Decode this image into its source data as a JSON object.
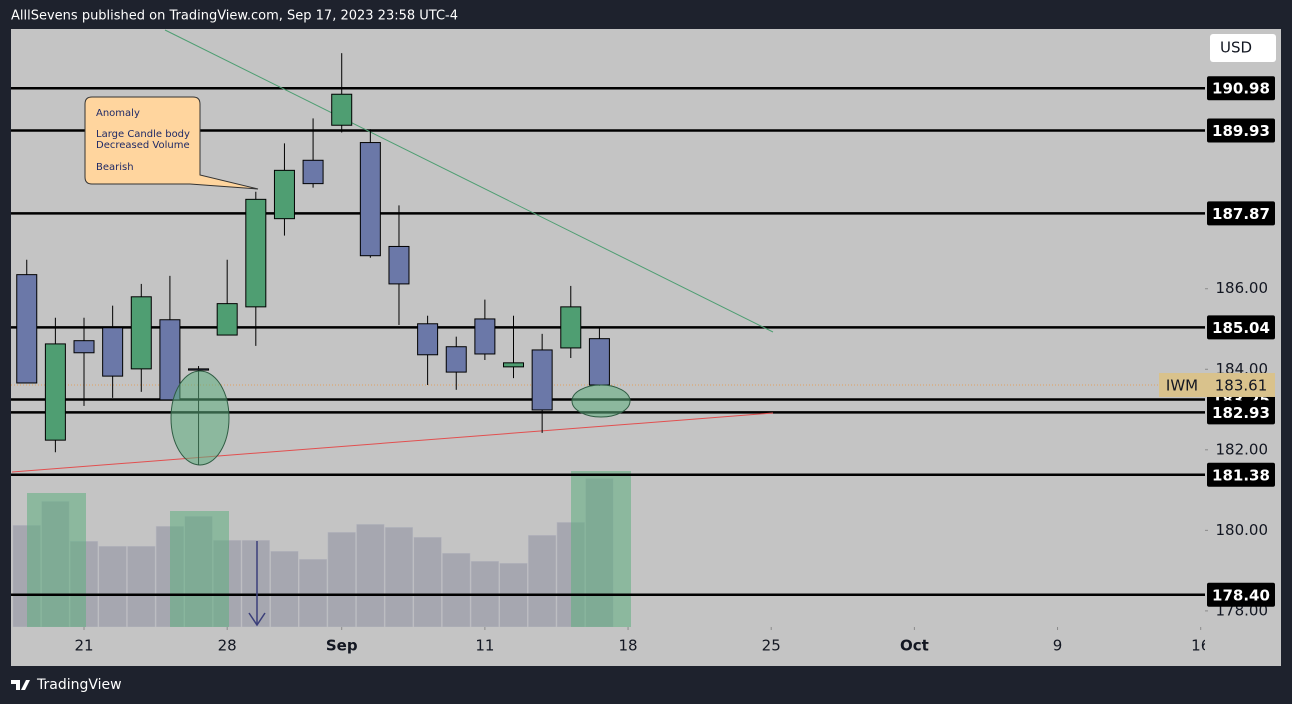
{
  "chart_data": {
    "type": "candlestick",
    "publisher_line": "AlllSevens published on TradingView.com, Sep 17, 2023 23:58 UTC-4",
    "brand": "TradingView",
    "currency": "USD",
    "symbol": "IWM",
    "last_price": 183.61,
    "callout": [
      "Anomaly",
      "Large Candle body",
      "Decreased Volume",
      "Bearish"
    ],
    "x": [
      0,
      1,
      2,
      3,
      4,
      5,
      6,
      7,
      8,
      9,
      10,
      11,
      12,
      13,
      14,
      15,
      16,
      17,
      18,
      19,
      20
    ],
    "open": [
      186.35,
      182.24,
      184.71,
      185.03,
      184.01,
      185.23,
      184.01,
      184.85,
      185.55,
      187.74,
      189.19,
      190.06,
      189.63,
      187.05,
      185.13,
      184.56,
      185.25,
      184.06,
      184.48,
      184.53,
      184.76
    ],
    "high": [
      186.72,
      185.28,
      185.28,
      185.58,
      186.12,
      186.32,
      184.08,
      186.72,
      188.41,
      189.61,
      190.23,
      191.85,
      189.96,
      188.07,
      185.33,
      184.81,
      185.73,
      185.33,
      184.88,
      186.07,
      185.03
    ],
    "low": [
      183.66,
      181.94,
      183.09,
      183.29,
      183.44,
      183.24,
      181.62,
      184.85,
      184.58,
      187.32,
      188.51,
      189.88,
      186.77,
      185.1,
      183.61,
      183.49,
      184.23,
      183.78,
      182.42,
      184.28,
      183.59
    ],
    "close": [
      183.66,
      184.63,
      184.41,
      183.83,
      185.8,
      183.24,
      183.98,
      185.63,
      188.22,
      188.94,
      188.61,
      190.83,
      186.82,
      186.12,
      184.36,
      183.93,
      184.38,
      184.16,
      182.99,
      185.55,
      183.61
    ],
    "volume": [
      102,
      126,
      86,
      81,
      81,
      101,
      111,
      87,
      87,
      76,
      68,
      95,
      103,
      100,
      90,
      74,
      66,
      64,
      92,
      105,
      149
    ],
    "up_color": "#4f9e72",
    "down_color": "#6b78a8",
    "volume_color": "#a6a7b0",
    "vlim": [
      0,
      600
    ],
    "xlim": [
      -0.55,
      41.15
    ],
    "xticks": [
      {
        "value": 2,
        "label": "21"
      },
      {
        "value": 7,
        "label": "28"
      },
      {
        "value": 11,
        "label": "Sep"
      },
      {
        "value": 16,
        "label": "11"
      },
      {
        "value": 21,
        "label": "18"
      },
      {
        "value": 26,
        "label": "25"
      },
      {
        "value": 31,
        "label": "Oct"
      },
      {
        "value": 36,
        "label": "9"
      },
      {
        "value": 41,
        "label": "16"
      }
    ],
    "ylim": [
      177.6,
      192.45
    ],
    "yticks": [
      {
        "value": 186,
        "label": "186.00"
      },
      {
        "value": 184,
        "label": "184.00"
      },
      {
        "value": 182,
        "label": "182.00"
      },
      {
        "value": 180,
        "label": "180.00"
      },
      {
        "value": 178,
        "label": "178.00"
      }
    ],
    "levels": [
      190.98,
      189.93,
      187.87,
      185.04,
      183.25,
      182.93,
      181.38,
      {
        "value": 178.4,
        "label": "178.40"
      }
    ]
  }
}
